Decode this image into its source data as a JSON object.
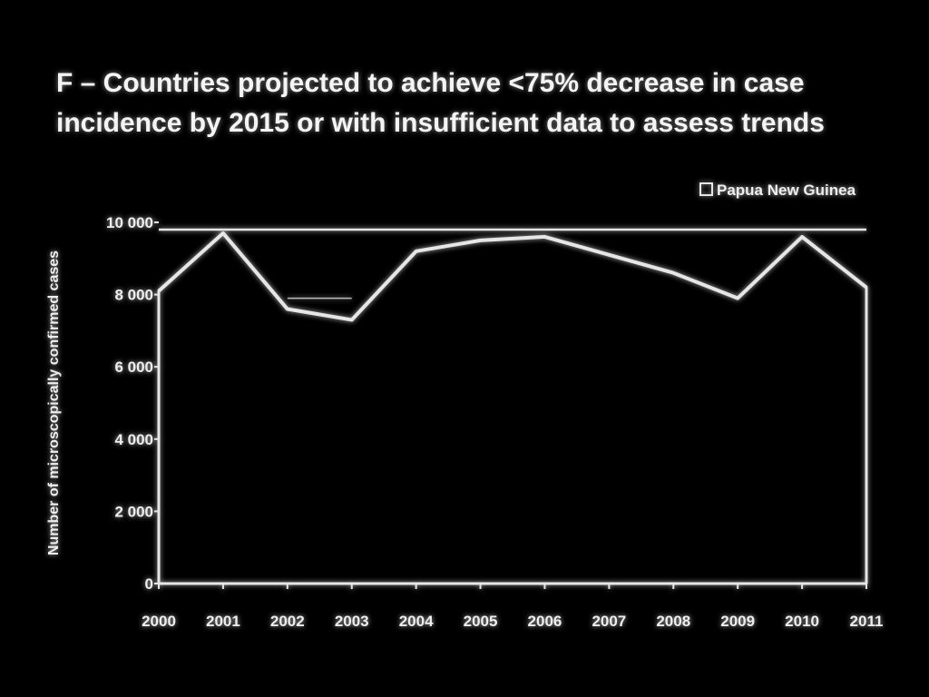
{
  "chart_data": {
    "type": "area",
    "title_lines": [
      "F – Countries projected to achieve <75% decrease in case",
      "incidence by 2015 or with insufficient data to assess trends"
    ],
    "ylabel": "Number of microscopically confirmed cases",
    "xlabel": "",
    "x": [
      "2000",
      "2001",
      "2002",
      "2003",
      "2004",
      "2005",
      "2006",
      "2007",
      "2008",
      "2009",
      "2010",
      "2011"
    ],
    "series": [
      {
        "name": "Papua New Guinea",
        "values": [
          8100,
          9700,
          7600,
          7300,
          9200,
          9500,
          9600,
          9100,
          8600,
          7900,
          9600,
          8200
        ]
      }
    ],
    "secondary_line": {
      "note": "faint inner line segment",
      "x": [
        "2002",
        "2003"
      ],
      "values": [
        7900,
        7900
      ]
    },
    "reference_line": {
      "value": 9800
    },
    "ylim": [
      0,
      10000
    ],
    "yticks": [
      0,
      2000,
      4000,
      6000,
      8000,
      10000
    ],
    "ytick_labels": [
      "0",
      "2 000",
      "4 000",
      "6 000",
      "8 000",
      "10 000"
    ],
    "grid": false,
    "legend_position": "top-right",
    "colors": {
      "background": "#000000",
      "line": "#e6e6e6",
      "text": "#f2f2f2"
    }
  }
}
